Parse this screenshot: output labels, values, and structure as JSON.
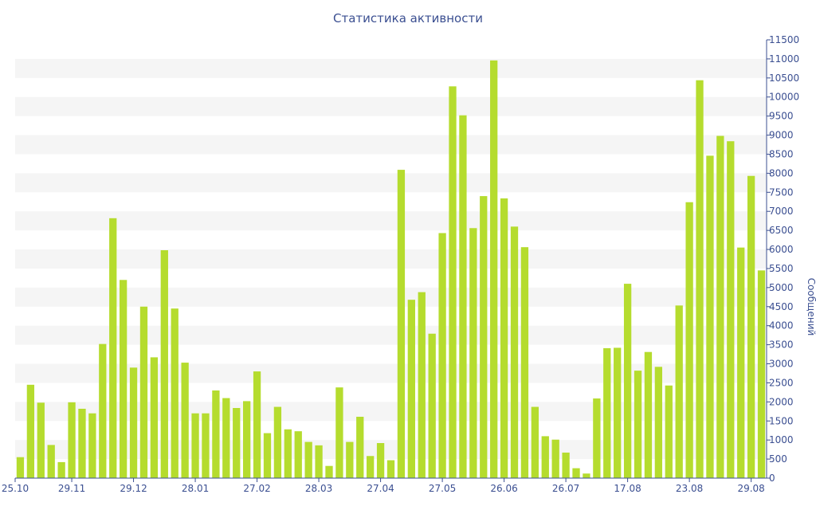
{
  "chart_data": {
    "type": "bar",
    "title": "Статистика активности",
    "xlabel": "",
    "ylabel": "Сообщений",
    "ylim": [
      0,
      11500
    ],
    "y_ticks": [
      0,
      500,
      1000,
      1500,
      2000,
      2500,
      3000,
      3500,
      4000,
      4500,
      5000,
      5500,
      6000,
      6500,
      7000,
      7500,
      8000,
      8500,
      9000,
      9500,
      10000,
      10500,
      11000,
      11500
    ],
    "x_tick_labels": [
      {
        "label": "25.10",
        "index": 0
      },
      {
        "label": "29.11",
        "index": 5
      },
      {
        "label": "29.12",
        "index": 11
      },
      {
        "label": "28.01",
        "index": 17
      },
      {
        "label": "27.02",
        "index": 23
      },
      {
        "label": "28.03",
        "index": 29
      },
      {
        "label": "27.04",
        "index": 35
      },
      {
        "label": "27.05",
        "index": 41
      },
      {
        "label": "26.06",
        "index": 47
      },
      {
        "label": "26.07",
        "index": 53
      },
      {
        "label": "17.08",
        "index": 59
      },
      {
        "label": "23.08",
        "index": 65
      },
      {
        "label": "29.08",
        "index": 71
      }
    ],
    "values": [
      550,
      2450,
      1980,
      870,
      420,
      1990,
      1820,
      1700,
      3520,
      6820,
      5200,
      2900,
      4500,
      3170,
      5980,
      4450,
      3030,
      1700,
      1700,
      2300,
      2100,
      1840,
      2020,
      2800,
      1180,
      1870,
      1280,
      1230,
      950,
      860,
      320,
      2380,
      950,
      1610,
      580,
      920,
      470,
      8090,
      4680,
      4880,
      3790,
      6430,
      10280,
      9520,
      6560,
      7400,
      10960,
      7340,
      6600,
      6060,
      1870,
      1100,
      1010,
      670,
      260,
      120,
      2090,
      3410,
      3420,
      5100,
      2820,
      3310,
      2920,
      2430,
      4530,
      7240,
      10440,
      8460,
      8980,
      8840,
      6050,
      7930,
      5450
    ],
    "bar_color": "#b5dc2e",
    "grid": true,
    "grid_band_color": "#f5f5f5",
    "axis_color": "#3b4f91",
    "y_axis_side": "right"
  }
}
